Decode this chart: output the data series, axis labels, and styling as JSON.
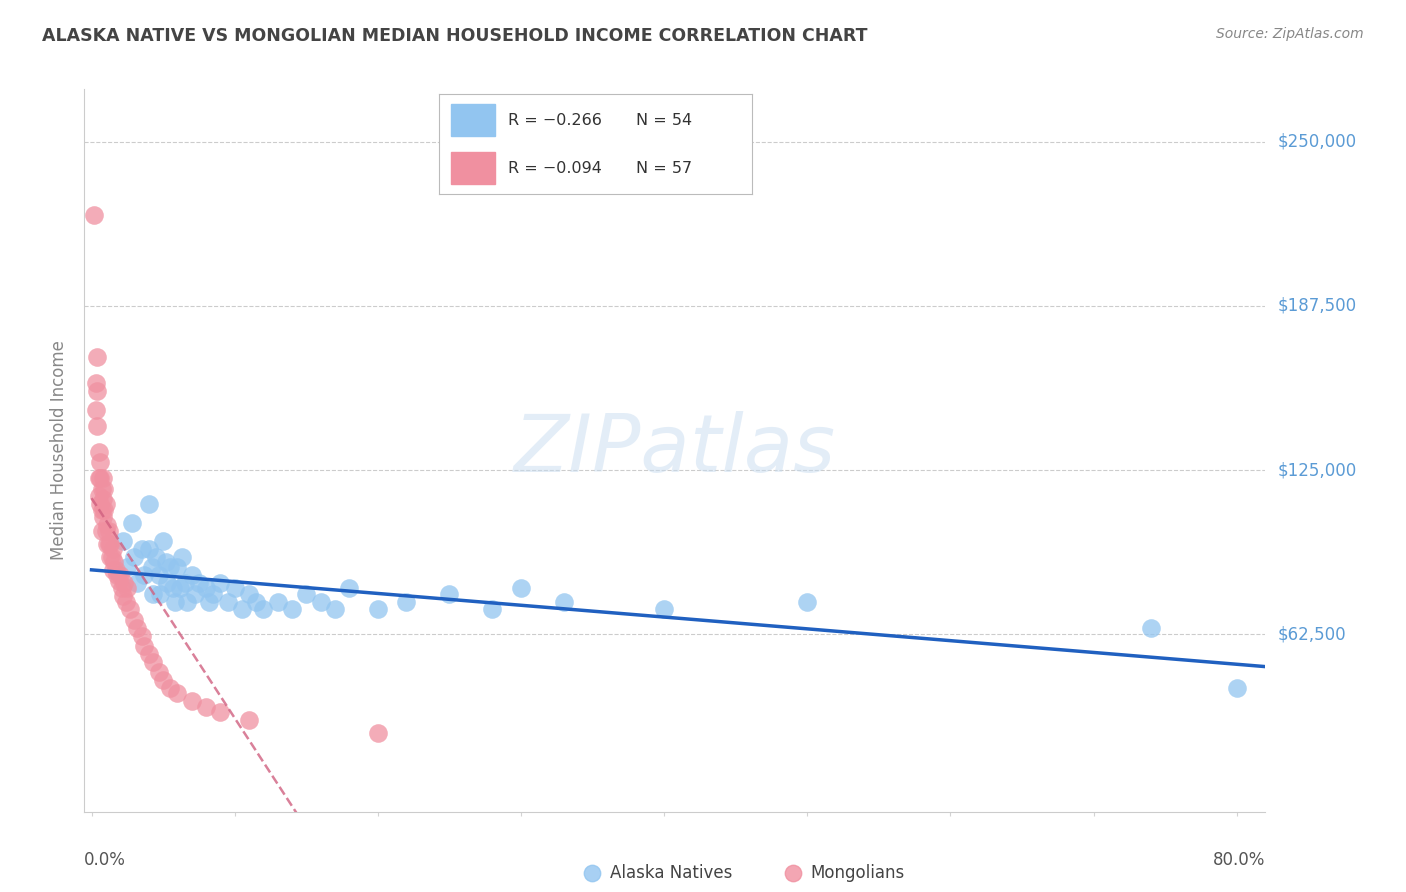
{
  "title": "ALASKA NATIVE VS MONGOLIAN MEDIAN HOUSEHOLD INCOME CORRELATION CHART",
  "source": "Source: ZipAtlas.com",
  "ylabel": "Median Household Income",
  "watermark_text": "ZIPatlas",
  "y_ticks": [
    0,
    62500,
    125000,
    187500,
    250000
  ],
  "y_tick_labels": [
    "",
    "$62,500",
    "$125,000",
    "$187,500",
    "$250,000"
  ],
  "ylim": [
    -5000,
    270000
  ],
  "xlim": [
    -0.005,
    0.82
  ],
  "legend_alaska_r": "R = −0.266",
  "legend_alaska_n": "N = 54",
  "legend_mongolian_r": "R = −0.094",
  "legend_mongolian_n": "N = 57",
  "color_alaska": "#92C5F0",
  "color_mongolian": "#F090A0",
  "color_trendline_alaska": "#2060C0",
  "color_trendline_mongolian": "#D06080",
  "color_ytick_labels": "#5B9BD5",
  "color_title": "#444444",
  "color_source": "#888888",
  "color_ylabel": "#888888",
  "color_grid": "#CCCCCC",
  "alaska_x": [
    0.022,
    0.025,
    0.028,
    0.03,
    0.032,
    0.035,
    0.037,
    0.04,
    0.04,
    0.042,
    0.043,
    0.045,
    0.047,
    0.048,
    0.05,
    0.052,
    0.053,
    0.055,
    0.057,
    0.058,
    0.06,
    0.062,
    0.063,
    0.065,
    0.067,
    0.07,
    0.072,
    0.075,
    0.08,
    0.082,
    0.085,
    0.09,
    0.095,
    0.1,
    0.105,
    0.11,
    0.115,
    0.12,
    0.13,
    0.14,
    0.15,
    0.16,
    0.17,
    0.18,
    0.2,
    0.22,
    0.25,
    0.28,
    0.3,
    0.33,
    0.4,
    0.5,
    0.74,
    0.8
  ],
  "alaska_y": [
    98000,
    88000,
    105000,
    92000,
    82000,
    95000,
    85000,
    112000,
    95000,
    88000,
    78000,
    92000,
    85000,
    78000,
    98000,
    90000,
    82000,
    88000,
    80000,
    75000,
    88000,
    80000,
    92000,
    82000,
    75000,
    85000,
    78000,
    82000,
    80000,
    75000,
    78000,
    82000,
    75000,
    80000,
    72000,
    78000,
    75000,
    72000,
    75000,
    72000,
    78000,
    75000,
    72000,
    80000,
    72000,
    75000,
    78000,
    72000,
    80000,
    75000,
    72000,
    75000,
    65000,
    42000
  ],
  "mongolian_x": [
    0.002,
    0.003,
    0.003,
    0.004,
    0.004,
    0.004,
    0.005,
    0.005,
    0.005,
    0.006,
    0.006,
    0.006,
    0.007,
    0.007,
    0.007,
    0.008,
    0.008,
    0.008,
    0.009,
    0.009,
    0.01,
    0.01,
    0.011,
    0.011,
    0.012,
    0.012,
    0.013,
    0.013,
    0.014,
    0.015,
    0.015,
    0.016,
    0.017,
    0.018,
    0.019,
    0.02,
    0.021,
    0.022,
    0.023,
    0.024,
    0.025,
    0.027,
    0.03,
    0.032,
    0.035,
    0.037,
    0.04,
    0.043,
    0.047,
    0.05,
    0.055,
    0.06,
    0.07,
    0.08,
    0.09,
    0.11,
    0.2
  ],
  "mongolian_y": [
    222000,
    158000,
    148000,
    168000,
    155000,
    142000,
    132000,
    122000,
    115000,
    128000,
    122000,
    112000,
    118000,
    110000,
    102000,
    122000,
    114000,
    107000,
    118000,
    110000,
    102000,
    112000,
    104000,
    97000,
    102000,
    97000,
    92000,
    97000,
    92000,
    87000,
    95000,
    90000,
    87000,
    85000,
    83000,
    85000,
    80000,
    77000,
    82000,
    75000,
    80000,
    72000,
    68000,
    65000,
    62000,
    58000,
    55000,
    52000,
    48000,
    45000,
    42000,
    40000,
    37000,
    35000,
    33000,
    30000,
    25000
  ]
}
